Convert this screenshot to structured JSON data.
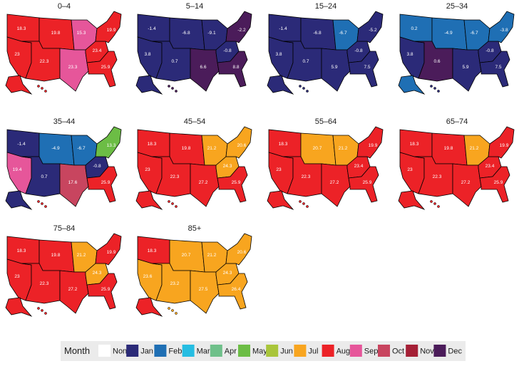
{
  "panels": [
    {
      "title": "0–4",
      "regions": [
        {
          "month": "Aug",
          "label": "18.3"
        },
        {
          "month": "Aug",
          "label": "23"
        },
        {
          "month": "Aug",
          "label": "19.8"
        },
        {
          "month": "Aug",
          "label": "22.3"
        },
        {
          "month": "Sep",
          "label": "15.3"
        },
        {
          "month": "Sep",
          "label": "23.3"
        },
        {
          "month": "Aug",
          "label": "23.4"
        },
        {
          "month": "Aug",
          "label": "25.9"
        },
        {
          "month": "Aug",
          "label": "19.9"
        }
      ],
      "alaska": "Aug",
      "hawaii": "Aug"
    },
    {
      "title": "5–14",
      "regions": [
        {
          "month": "Jan",
          "label": "-1.4"
        },
        {
          "month": "Jan",
          "label": "3.8"
        },
        {
          "month": "Jan",
          "label": "-6.8"
        },
        {
          "month": "Jan",
          "label": "0.7"
        },
        {
          "month": "Jan",
          "label": "-9.1"
        },
        {
          "month": "Dec",
          "label": "6.6"
        },
        {
          "month": "Jan",
          "label": "-0.8"
        },
        {
          "month": "Dec",
          "label": "8.8"
        },
        {
          "month": "Dec",
          "label": "-2.2"
        }
      ],
      "alaska": "Jan",
      "hawaii": "Dec"
    },
    {
      "title": "15–24",
      "regions": [
        {
          "month": "Jan",
          "label": "-1.4"
        },
        {
          "month": "Jan",
          "label": "3.8"
        },
        {
          "month": "Jan",
          "label": "-6.8"
        },
        {
          "month": "Jan",
          "label": "0.7"
        },
        {
          "month": "Feb",
          "label": "-6.7"
        },
        {
          "month": "Jan",
          "label": "5.9"
        },
        {
          "month": "Jan",
          "label": "-0.8"
        },
        {
          "month": "Jan",
          "label": "7.5"
        },
        {
          "month": "Jan",
          "label": "-5.2"
        }
      ],
      "alaska": "Jan",
      "hawaii": "Jan"
    },
    {
      "title": "25–34",
      "regions": [
        {
          "month": "Feb",
          "label": "0.2"
        },
        {
          "month": "Jan",
          "label": "3.8"
        },
        {
          "month": "Feb",
          "label": "-4.9"
        },
        {
          "month": "Dec",
          "label": "0.6"
        },
        {
          "month": "Feb",
          "label": "-6.7"
        },
        {
          "month": "Jan",
          "label": "5.9"
        },
        {
          "month": "Jan",
          "label": "-0.8"
        },
        {
          "month": "Jan",
          "label": "7.5"
        },
        {
          "month": "Feb",
          "label": "-3.8"
        }
      ],
      "alaska": "Feb",
      "hawaii": "Jan"
    },
    {
      "title": "35–44",
      "regions": [
        {
          "month": "Jan",
          "label": "-1.4"
        },
        {
          "month": "Sep",
          "label": "19.4"
        },
        {
          "month": "Feb",
          "label": "-4.9"
        },
        {
          "month": "Jan",
          "label": "0.7"
        },
        {
          "month": "Feb",
          "label": "-6.7"
        },
        {
          "month": "Oct",
          "label": "17.6"
        },
        {
          "month": "Jan",
          "label": "-0.8"
        },
        {
          "month": "Aug",
          "label": "25.9"
        },
        {
          "month": "May",
          "label": "13.3"
        }
      ],
      "alaska": "Jan",
      "hawaii": "Aug"
    },
    {
      "title": "45–54",
      "regions": [
        {
          "month": "Aug",
          "label": "18.3"
        },
        {
          "month": "Aug",
          "label": "23"
        },
        {
          "month": "Aug",
          "label": "19.8"
        },
        {
          "month": "Aug",
          "label": "22.3"
        },
        {
          "month": "Jul",
          "label": "21.2"
        },
        {
          "month": "Aug",
          "label": "27.2"
        },
        {
          "month": "Jul",
          "label": "24.3"
        },
        {
          "month": "Aug",
          "label": "25.9"
        },
        {
          "month": "Jul",
          "label": "20.6"
        }
      ],
      "alaska": "Aug",
      "hawaii": "Aug"
    },
    {
      "title": "55–64",
      "regions": [
        {
          "month": "Aug",
          "label": "18.3"
        },
        {
          "month": "Aug",
          "label": "23"
        },
        {
          "month": "Jul",
          "label": "20.7"
        },
        {
          "month": "Aug",
          "label": "22.3"
        },
        {
          "month": "Jul",
          "label": "21.2"
        },
        {
          "month": "Aug",
          "label": "27.2"
        },
        {
          "month": "Aug",
          "label": "23.4"
        },
        {
          "month": "Aug",
          "label": "25.9"
        },
        {
          "month": "Aug",
          "label": "19.9"
        }
      ],
      "alaska": "Aug",
      "hawaii": "Aug"
    },
    {
      "title": "65–74",
      "regions": [
        {
          "month": "Aug",
          "label": "18.3"
        },
        {
          "month": "Aug",
          "label": "23"
        },
        {
          "month": "Aug",
          "label": "19.8"
        },
        {
          "month": "Aug",
          "label": "22.3"
        },
        {
          "month": "Jul",
          "label": "21.2"
        },
        {
          "month": "Aug",
          "label": "27.2"
        },
        {
          "month": "Aug",
          "label": "23.4"
        },
        {
          "month": "Aug",
          "label": "25.9"
        },
        {
          "month": "Aug",
          "label": "19.9"
        }
      ],
      "alaska": "Aug",
      "hawaii": "Aug"
    },
    {
      "title": "75–84",
      "regions": [
        {
          "month": "Aug",
          "label": "18.3"
        },
        {
          "month": "Aug",
          "label": "23"
        },
        {
          "month": "Aug",
          "label": "19.8"
        },
        {
          "month": "Aug",
          "label": "22.3"
        },
        {
          "month": "Jul",
          "label": "21.2"
        },
        {
          "month": "Aug",
          "label": "27.2"
        },
        {
          "month": "Jul",
          "label": "24.3"
        },
        {
          "month": "Aug",
          "label": "25.9"
        },
        {
          "month": "Aug",
          "label": "19.9"
        }
      ],
      "alaska": "Aug",
      "hawaii": "Aug"
    },
    {
      "title": "85+",
      "regions": [
        {
          "month": "Aug",
          "label": "18.3"
        },
        {
          "month": "Jul",
          "label": "23.6"
        },
        {
          "month": "Jul",
          "label": "20.7"
        },
        {
          "month": "Jul",
          "label": "23.2"
        },
        {
          "month": "Jul",
          "label": "21.2"
        },
        {
          "month": "Jul",
          "label": "27.5"
        },
        {
          "month": "Jul",
          "label": "24.3"
        },
        {
          "month": "Jul",
          "label": "26.4"
        },
        {
          "month": "Jul",
          "label": "20.6"
        }
      ],
      "alaska": "Aug",
      "hawaii": "Jul"
    }
  ],
  "legend": {
    "title": "Month",
    "items": [
      {
        "name": "None",
        "color": "#ffffff"
      },
      {
        "name": "Jan",
        "color": "#2b2a78"
      },
      {
        "name": "Feb",
        "color": "#1f6fb4"
      },
      {
        "name": "Mar",
        "color": "#26bde2"
      },
      {
        "name": "Apr",
        "color": "#6fc08a"
      },
      {
        "name": "May",
        "color": "#6cbd45"
      },
      {
        "name": "Jun",
        "color": "#a9c53a"
      },
      {
        "name": "Jul",
        "color": "#f8a51f"
      },
      {
        "name": "Aug",
        "color": "#ec2227"
      },
      {
        "name": "Sep",
        "color": "#e6569a"
      },
      {
        "name": "Oct",
        "color": "#c8455f"
      },
      {
        "name": "Nov",
        "color": "#a52036"
      },
      {
        "name": "Dec",
        "color": "#4b1c5a"
      }
    ]
  }
}
